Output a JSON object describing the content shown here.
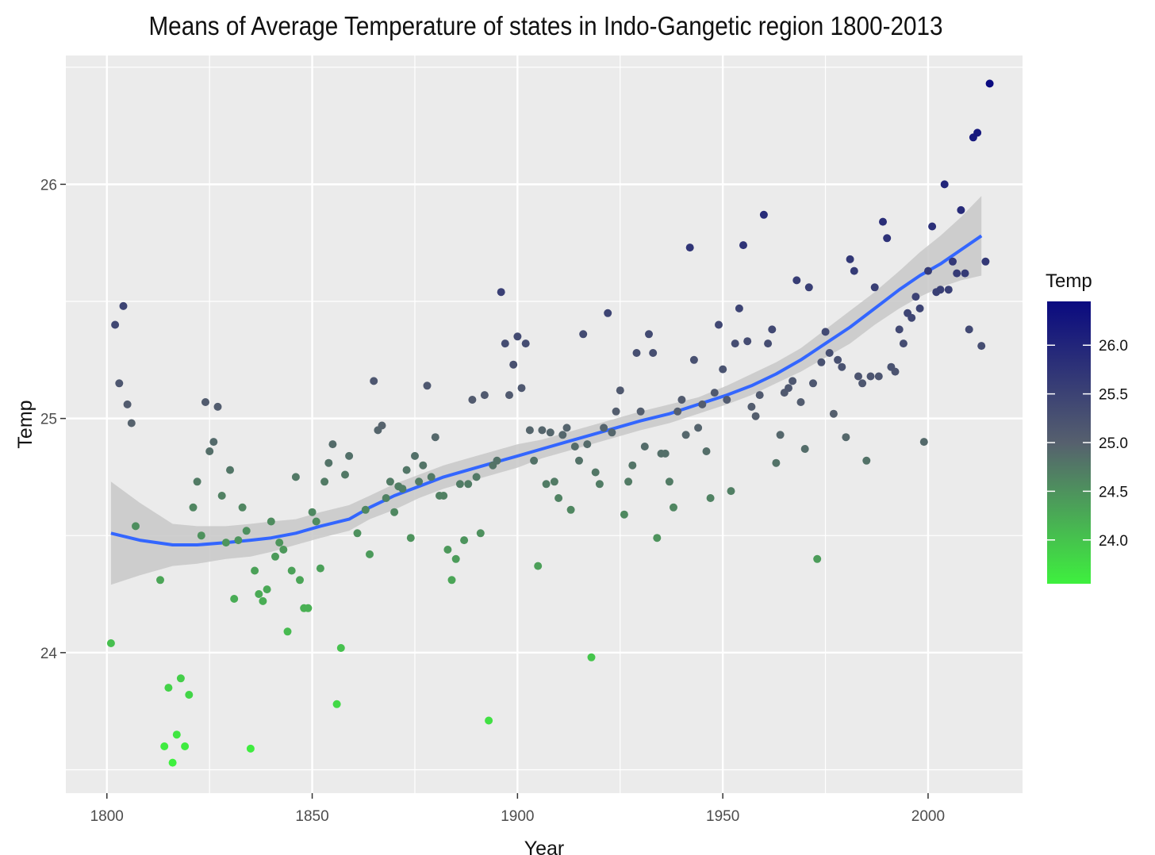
{
  "chart_data": {
    "type": "scatter",
    "title": "Means of Average Temperature of states in Indo-Gangetic region 1800-2013",
    "xlabel": "Year",
    "ylabel": "Temp",
    "xlim": [
      1790,
      2023
    ],
    "ylim": [
      23.4,
      26.55
    ],
    "x_ticks": [
      1800,
      1850,
      1900,
      1950,
      2000
    ],
    "y_ticks": [
      24,
      25,
      26
    ],
    "grid": true,
    "legend": {
      "title": "Temp",
      "position": "right",
      "type": "colorbar",
      "low_color": "#3ef03e",
      "high_color": "#0a0a80",
      "range": [
        23.55,
        26.45
      ],
      "ticks": [
        "24.0",
        "24.5",
        "25.0",
        "25.5",
        "26.0"
      ],
      "tick_values": [
        24.0,
        24.5,
        25.0,
        25.5,
        26.0
      ]
    },
    "color_scale": {
      "low": "#3ef03e",
      "mid": "#56606e",
      "high": "#0a0a80",
      "min": 23.55,
      "max": 26.45
    },
    "colors": {
      "panel": "#ebebeb",
      "grid": "#ffffff",
      "smooth_line": "#3366ff",
      "confidence_band": "#c8c8c8"
    },
    "points": [
      [
        1801,
        24.04
      ],
      [
        1802,
        25.4
      ],
      [
        1803,
        25.15
      ],
      [
        1804,
        25.48
      ],
      [
        1805,
        25.06
      ],
      [
        1806,
        24.98
      ],
      [
        1807,
        24.54
      ],
      [
        1813,
        24.31
      ],
      [
        1814,
        23.6
      ],
      [
        1815,
        23.85
      ],
      [
        1816,
        23.53
      ],
      [
        1817,
        23.65
      ],
      [
        1818,
        23.89
      ],
      [
        1819,
        23.6
      ],
      [
        1820,
        23.82
      ],
      [
        1821,
        24.62
      ],
      [
        1822,
        24.73
      ],
      [
        1823,
        24.5
      ],
      [
        1824,
        25.07
      ],
      [
        1825,
        24.86
      ],
      [
        1826,
        24.9
      ],
      [
        1827,
        25.05
      ],
      [
        1828,
        24.67
      ],
      [
        1829,
        24.47
      ],
      [
        1830,
        24.78
      ],
      [
        1831,
        24.23
      ],
      [
        1832,
        24.48
      ],
      [
        1833,
        24.62
      ],
      [
        1834,
        24.52
      ],
      [
        1835,
        23.59
      ],
      [
        1836,
        24.35
      ],
      [
        1837,
        24.25
      ],
      [
        1838,
        24.22
      ],
      [
        1839,
        24.27
      ],
      [
        1840,
        24.56
      ],
      [
        1841,
        24.41
      ],
      [
        1842,
        24.47
      ],
      [
        1843,
        24.44
      ],
      [
        1844,
        24.09
      ],
      [
        1845,
        24.35
      ],
      [
        1846,
        24.75
      ],
      [
        1847,
        24.31
      ],
      [
        1848,
        24.19
      ],
      [
        1849,
        24.19
      ],
      [
        1850,
        24.6
      ],
      [
        1851,
        24.56
      ],
      [
        1852,
        24.36
      ],
      [
        1853,
        24.73
      ],
      [
        1854,
        24.81
      ],
      [
        1855,
        24.89
      ],
      [
        1856,
        23.78
      ],
      [
        1857,
        24.02
      ],
      [
        1858,
        24.76
      ],
      [
        1859,
        24.84
      ],
      [
        1861,
        24.51
      ],
      [
        1863,
        24.61
      ],
      [
        1864,
        24.42
      ],
      [
        1865,
        25.16
      ],
      [
        1866,
        24.95
      ],
      [
        1867,
        24.97
      ],
      [
        1868,
        24.66
      ],
      [
        1869,
        24.73
      ],
      [
        1870,
        24.6
      ],
      [
        1871,
        24.71
      ],
      [
        1872,
        24.7
      ],
      [
        1873,
        24.78
      ],
      [
        1874,
        24.49
      ],
      [
        1875,
        24.84
      ],
      [
        1876,
        24.73
      ],
      [
        1877,
        24.8
      ],
      [
        1878,
        25.14
      ],
      [
        1879,
        24.75
      ],
      [
        1880,
        24.92
      ],
      [
        1881,
        24.67
      ],
      [
        1882,
        24.67
      ],
      [
        1883,
        24.44
      ],
      [
        1884,
        24.31
      ],
      [
        1885,
        24.4
      ],
      [
        1886,
        24.72
      ],
      [
        1887,
        24.48
      ],
      [
        1888,
        24.72
      ],
      [
        1889,
        25.08
      ],
      [
        1890,
        24.75
      ],
      [
        1891,
        24.51
      ],
      [
        1892,
        25.1
      ],
      [
        1893,
        23.71
      ],
      [
        1894,
        24.8
      ],
      [
        1895,
        24.82
      ],
      [
        1896,
        25.54
      ],
      [
        1897,
        25.32
      ],
      [
        1898,
        25.1
      ],
      [
        1899,
        25.23
      ],
      [
        1900,
        25.35
      ],
      [
        1901,
        25.13
      ],
      [
        1902,
        25.32
      ],
      [
        1903,
        24.95
      ],
      [
        1904,
        24.82
      ],
      [
        1905,
        24.37
      ],
      [
        1906,
        24.95
      ],
      [
        1907,
        24.72
      ],
      [
        1908,
        24.94
      ],
      [
        1909,
        24.73
      ],
      [
        1910,
        24.66
      ],
      [
        1911,
        24.93
      ],
      [
        1912,
        24.96
      ],
      [
        1913,
        24.61
      ],
      [
        1914,
        24.88
      ],
      [
        1915,
        24.82
      ],
      [
        1916,
        25.36
      ],
      [
        1917,
        24.89
      ],
      [
        1918,
        23.98
      ],
      [
        1919,
        24.77
      ],
      [
        1920,
        24.72
      ],
      [
        1921,
        24.96
      ],
      [
        1922,
        25.45
      ],
      [
        1923,
        24.94
      ],
      [
        1924,
        25.03
      ],
      [
        1925,
        25.12
      ],
      [
        1926,
        24.59
      ],
      [
        1927,
        24.73
      ],
      [
        1928,
        24.8
      ],
      [
        1929,
        25.28
      ],
      [
        1930,
        25.03
      ],
      [
        1931,
        24.88
      ],
      [
        1932,
        25.36
      ],
      [
        1933,
        25.28
      ],
      [
        1934,
        24.49
      ],
      [
        1935,
        24.85
      ],
      [
        1936,
        24.85
      ],
      [
        1937,
        24.73
      ],
      [
        1938,
        24.62
      ],
      [
        1939,
        25.03
      ],
      [
        1940,
        25.08
      ],
      [
        1941,
        24.93
      ],
      [
        1942,
        25.73
      ],
      [
        1943,
        25.25
      ],
      [
        1944,
        24.96
      ],
      [
        1945,
        25.06
      ],
      [
        1946,
        24.86
      ],
      [
        1947,
        24.66
      ],
      [
        1948,
        25.11
      ],
      [
        1949,
        25.4
      ],
      [
        1950,
        25.21
      ],
      [
        1951,
        25.08
      ],
      [
        1952,
        24.69
      ],
      [
        1953,
        25.32
      ],
      [
        1954,
        25.47
      ],
      [
        1955,
        25.74
      ],
      [
        1956,
        25.33
      ],
      [
        1957,
        25.05
      ],
      [
        1958,
        25.01
      ],
      [
        1959,
        25.1
      ],
      [
        1960,
        25.87
      ],
      [
        1961,
        25.32
      ],
      [
        1962,
        25.38
      ],
      [
        1963,
        24.81
      ],
      [
        1964,
        24.93
      ],
      [
        1965,
        25.11
      ],
      [
        1966,
        25.13
      ],
      [
        1967,
        25.16
      ],
      [
        1968,
        25.59
      ],
      [
        1969,
        25.07
      ],
      [
        1970,
        24.87
      ],
      [
        1971,
        25.56
      ],
      [
        1972,
        25.15
      ],
      [
        1973,
        24.4
      ],
      [
        1974,
        25.24
      ],
      [
        1975,
        25.37
      ],
      [
        1976,
        25.28
      ],
      [
        1977,
        25.02
      ],
      [
        1978,
        25.25
      ],
      [
        1979,
        25.22
      ],
      [
        1980,
        24.92
      ],
      [
        1981,
        25.68
      ],
      [
        1982,
        25.63
      ],
      [
        1983,
        25.18
      ],
      [
        1984,
        25.15
      ],
      [
        1985,
        24.82
      ],
      [
        1986,
        25.18
      ],
      [
        1987,
        25.56
      ],
      [
        1988,
        25.18
      ],
      [
        1989,
        25.84
      ],
      [
        1990,
        25.77
      ],
      [
        1991,
        25.22
      ],
      [
        1992,
        25.2
      ],
      [
        1993,
        25.38
      ],
      [
        1994,
        25.32
      ],
      [
        1995,
        25.45
      ],
      [
        1996,
        25.43
      ],
      [
        1997,
        25.52
      ],
      [
        1998,
        25.47
      ],
      [
        1999,
        24.9
      ],
      [
        2000,
        25.63
      ],
      [
        2001,
        25.82
      ],
      [
        2002,
        25.54
      ],
      [
        2003,
        25.55
      ],
      [
        2004,
        26.0
      ],
      [
        2005,
        25.55
      ],
      [
        2006,
        25.67
      ],
      [
        2007,
        25.62
      ],
      [
        2008,
        25.89
      ],
      [
        2009,
        25.62
      ],
      [
        2010,
        25.38
      ],
      [
        2011,
        26.2
      ],
      [
        2012,
        26.22
      ],
      [
        2013,
        25.31
      ],
      [
        2014,
        25.67
      ],
      [
        2015,
        26.43
      ]
    ],
    "smooth": {
      "x": [
        1801,
        1808,
        1816,
        1822,
        1829,
        1835,
        1840,
        1846,
        1852,
        1859,
        1864,
        1870,
        1876,
        1882,
        1888,
        1894,
        1900,
        1906,
        1912,
        1918,
        1924,
        1930,
        1937,
        1944,
        1951,
        1957,
        1963,
        1969,
        1975,
        1981,
        1987,
        1993,
        1998,
        2003,
        2008,
        2013
      ],
      "y": [
        24.51,
        24.48,
        24.46,
        24.46,
        24.47,
        24.48,
        24.49,
        24.51,
        24.54,
        24.57,
        24.62,
        24.67,
        24.71,
        24.75,
        24.78,
        24.81,
        24.84,
        24.87,
        24.9,
        24.93,
        24.96,
        24.99,
        25.02,
        25.06,
        25.1,
        25.14,
        25.19,
        25.25,
        25.32,
        25.39,
        25.47,
        25.55,
        25.61,
        25.66,
        25.72,
        25.78
      ],
      "lo": [
        24.29,
        24.33,
        24.37,
        24.38,
        24.4,
        24.41,
        24.43,
        24.46,
        24.49,
        24.52,
        24.57,
        24.61,
        24.66,
        24.7,
        24.73,
        24.76,
        24.79,
        24.83,
        24.86,
        24.89,
        24.92,
        24.95,
        24.98,
        25.02,
        25.06,
        25.1,
        25.15,
        25.2,
        25.26,
        25.32,
        25.4,
        25.47,
        25.52,
        25.56,
        25.59,
        25.61
      ],
      "hi": [
        24.73,
        24.64,
        24.55,
        24.54,
        24.54,
        24.55,
        24.56,
        24.57,
        24.6,
        24.63,
        24.67,
        24.72,
        24.76,
        24.8,
        24.83,
        24.86,
        24.89,
        24.91,
        24.94,
        24.97,
        25.0,
        25.03,
        25.06,
        25.09,
        25.14,
        25.19,
        25.24,
        25.3,
        25.38,
        25.46,
        25.54,
        25.63,
        25.71,
        25.78,
        25.86,
        25.95
      ]
    }
  }
}
